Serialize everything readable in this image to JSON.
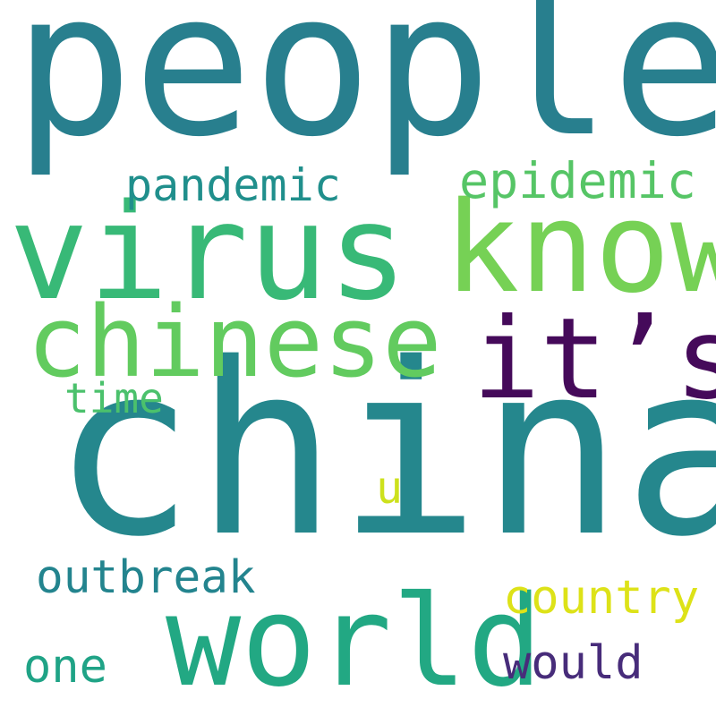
{
  "wordcloud": {
    "words": [
      {
        "text": "china",
        "color": "#25878d"
      },
      {
        "text": "people",
        "color": "#287f8e"
      },
      {
        "text": "virus",
        "color": "#38b977"
      },
      {
        "text": "know",
        "color": "#76d155"
      },
      {
        "text": "chinese",
        "color": "#62cb5f"
      },
      {
        "text": "it’s",
        "color": "#450a5a"
      },
      {
        "text": "world",
        "color": "#22a883"
      },
      {
        "text": "pandemic",
        "color": "#208f8c"
      },
      {
        "text": "epidemic",
        "color": "#56c566"
      },
      {
        "text": "time",
        "color": "#4bc16c"
      },
      {
        "text": "u",
        "color": "#cde11d"
      },
      {
        "text": "outbreak",
        "color": "#23848e"
      },
      {
        "text": "country",
        "color": "#dde218"
      },
      {
        "text": "one",
        "color": "#1fa386"
      },
      {
        "text": "would",
        "color": "#472c7a"
      }
    ]
  }
}
